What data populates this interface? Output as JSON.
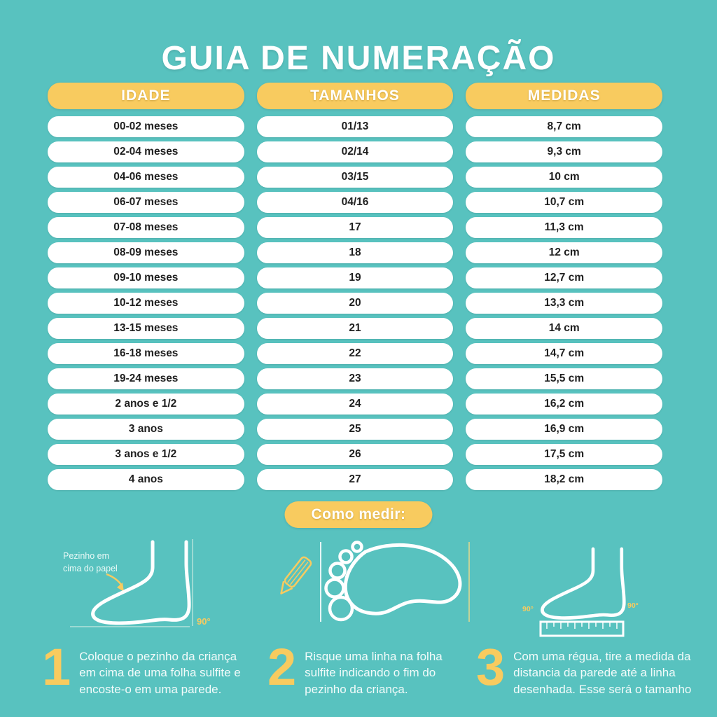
{
  "title": "GUIA DE NUMERAÇÃO",
  "colors": {
    "background": "#58c2bf",
    "accent_yellow": "#f8cb5f",
    "row_background": "#ffffff",
    "row_text": "#1f1f1f",
    "step_text": "#f2fbfa"
  },
  "table": {
    "columns": [
      {
        "header": "IDADE",
        "rows": [
          "00-02 meses",
          "02-04 meses",
          "04-06 meses",
          "06-07 meses",
          "07-08 meses",
          "08-09 meses",
          "09-10 meses",
          "10-12 meses",
          "13-15 meses",
          "16-18 meses",
          "19-24 meses",
          "2 anos e 1/2",
          "3 anos",
          "3 anos e 1/2",
          "4 anos"
        ]
      },
      {
        "header": "TAMANHOS",
        "rows": [
          "01/13",
          "02/14",
          "03/15",
          "04/16",
          "17",
          "18",
          "19",
          "20",
          "21",
          "22",
          "23",
          "24",
          "25",
          "26",
          "27"
        ]
      },
      {
        "header": "MEDIDAS",
        "rows": [
          "8,7 cm",
          "9,3 cm",
          "10 cm",
          "10,7 cm",
          "11,3 cm",
          "12 cm",
          "12,7 cm",
          "13,3 cm",
          "14 cm",
          "14,7 cm",
          "15,5 cm",
          "16,2 cm",
          "16,9 cm",
          "17,5 cm",
          "18,2 cm"
        ]
      }
    ]
  },
  "how_to_measure": {
    "label": "Como medir:",
    "illustration1": {
      "caption_line1": "Pezinho em",
      "caption_line2": "cima do papel",
      "angle": "90°"
    },
    "illustration3": {
      "angle_left": "90°",
      "angle_right": "90°"
    },
    "steps": [
      {
        "number": "1",
        "text": "Coloque o pezinho da criança em cima de uma folha sulfite e encoste-o em uma parede."
      },
      {
        "number": "2",
        "text": "Risque uma linha na folha sulfite indicando o fim do pezinho da criança."
      },
      {
        "number": "3",
        "text": "Com uma régua, tire a medida da distancia da parede até a linha desenhada. Esse será o tamanho"
      }
    ]
  }
}
